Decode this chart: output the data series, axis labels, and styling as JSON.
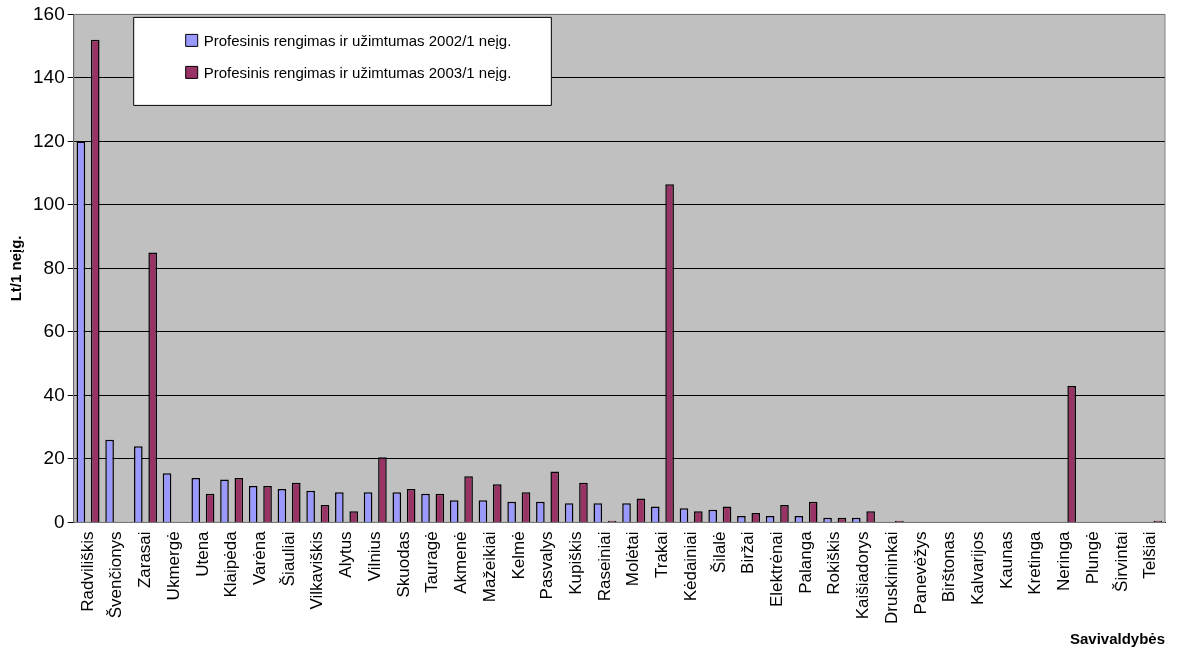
{
  "chart_data": {
    "type": "bar",
    "xlabel": "Savivaldybės",
    "ylabel": "Lt/1 neįg.",
    "categories": [
      "Radviliškis",
      "Švenčionys",
      "Zarasai",
      "Ukmergė",
      "Utena",
      "Klaipėda",
      "Varėna",
      "Šiauliai",
      "Vilkaviškis",
      "Alytus",
      "Vilnius",
      "Skuodas",
      "Tauragė",
      "Akmenė",
      "Mažeikiai",
      "Kelmė",
      "Pasvalys",
      "Kupiškis",
      "Raseiniai",
      "Molėtai",
      "Trakai",
      "Kėdainiai",
      "Šilalė",
      "Biržai",
      "Elektrėnai",
      "Palanga",
      "Rokiškis",
      "Kaišiadorys",
      "Druskininkai",
      "Panevėžys",
      "Birštonas",
      "Kalvarijos",
      "Kaunas",
      "Kretinga",
      "Neringa",
      "Plungė",
      "Širvintai",
      "Telšiai"
    ],
    "series": [
      {
        "name": "Profesinis rengimas ir užimtumas 2002/1 neįg.",
        "color": "#9999ff",
        "values": [
          120,
          26,
          24,
          15.5,
          14,
          13.5,
          11.5,
          10.5,
          10,
          9.5,
          9.5,
          9.5,
          9,
          7,
          7,
          6.5,
          6.5,
          6,
          6,
          6,
          5,
          4.5,
          4,
          2,
          2,
          2,
          1.5,
          1.5,
          null,
          null,
          null,
          null,
          null,
          null,
          null,
          null,
          null,
          null
        ]
      },
      {
        "name": "Profesinis rengimas ir užimtumas 2003/1 neįg.",
        "color": "#993366",
        "values": [
          152,
          null,
          85,
          null,
          9,
          14,
          11.5,
          12.5,
          5.5,
          3.5,
          20.5,
          10.5,
          9,
          14.5,
          12,
          9.5,
          16,
          12.5,
          0.5,
          7.5,
          106.5,
          3.5,
          5,
          3,
          5.5,
          6.5,
          1.5,
          3.5,
          0.5,
          null,
          null,
          null,
          null,
          null,
          43,
          null,
          null,
          0.5
        ]
      }
    ],
    "ylim": [
      0,
      160
    ],
    "yticks": [
      0,
      20,
      40,
      60,
      80,
      100,
      120,
      140,
      160
    ],
    "grid": "y",
    "legend": "top left"
  }
}
